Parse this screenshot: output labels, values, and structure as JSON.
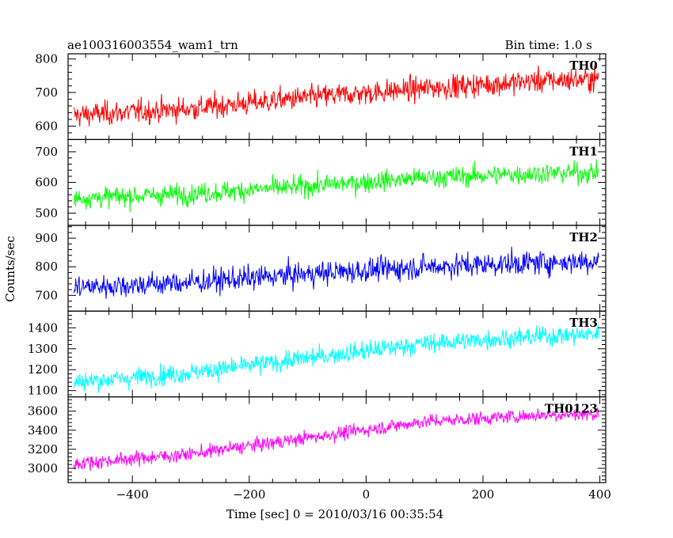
{
  "title_left": "ae100316003554_wam1_trn",
  "title_right": "Bin time: 1.0 s",
  "chart_data": {
    "type": "line",
    "xlabel": "Time [sec] 0 = 2010/03/16 00:35:54",
    "ylabel": "Counts/sec",
    "xlim": [
      -510,
      410
    ],
    "xticks": [
      -400,
      -200,
      0,
      200,
      400
    ],
    "x_range": [
      -500,
      398
    ],
    "bin_time_s": 1.0,
    "panels": [
      {
        "name": "TH0",
        "color": "#ff0000",
        "ylim": [
          560,
          815
        ],
        "yticks": [
          600,
          700,
          800
        ],
        "trend": [
          [
            -500,
            632
          ],
          [
            -300,
            652
          ],
          [
            -100,
            685
          ],
          [
            100,
            712
          ],
          [
            300,
            735
          ],
          [
            398,
            740
          ]
        ],
        "noise_sd": 32
      },
      {
        "name": "TH1",
        "color": "#00ff00",
        "ylim": [
          460,
          740
        ],
        "yticks": [
          500,
          600,
          700
        ],
        "trend": [
          [
            -500,
            548
          ],
          [
            -300,
            563
          ],
          [
            -100,
            588
          ],
          [
            100,
            615
          ],
          [
            300,
            630
          ],
          [
            398,
            632
          ]
        ],
        "noise_sd": 30
      },
      {
        "name": "TH2",
        "color": "#0000ff",
        "ylim": [
          645,
          945
        ],
        "yticks": [
          700,
          800,
          900
        ],
        "trend": [
          [
            -500,
            728
          ],
          [
            -300,
            745
          ],
          [
            -100,
            775
          ],
          [
            100,
            800
          ],
          [
            300,
            815
          ],
          [
            398,
            820
          ]
        ],
        "noise_sd": 38
      },
      {
        "name": "TH3",
        "color": "#00ffff",
        "ylim": [
          1070,
          1480
        ],
        "yticks": [
          1100,
          1200,
          1300,
          1400
        ],
        "trend": [
          [
            -500,
            1140
          ],
          [
            -300,
            1185
          ],
          [
            -100,
            1255
          ],
          [
            100,
            1325
          ],
          [
            300,
            1360
          ],
          [
            398,
            1370
          ]
        ],
        "noise_sd": 42
      },
      {
        "name": "TH0123",
        "color": "#ff00ff",
        "ylim": [
          2850,
          3750
        ],
        "yticks": [
          3000,
          3200,
          3400,
          3600
        ],
        "trend": [
          [
            -500,
            3050
          ],
          [
            -300,
            3150
          ],
          [
            -100,
            3320
          ],
          [
            100,
            3490
          ],
          [
            300,
            3560
          ],
          [
            398,
            3570
          ]
        ],
        "noise_sd": 65
      }
    ]
  }
}
